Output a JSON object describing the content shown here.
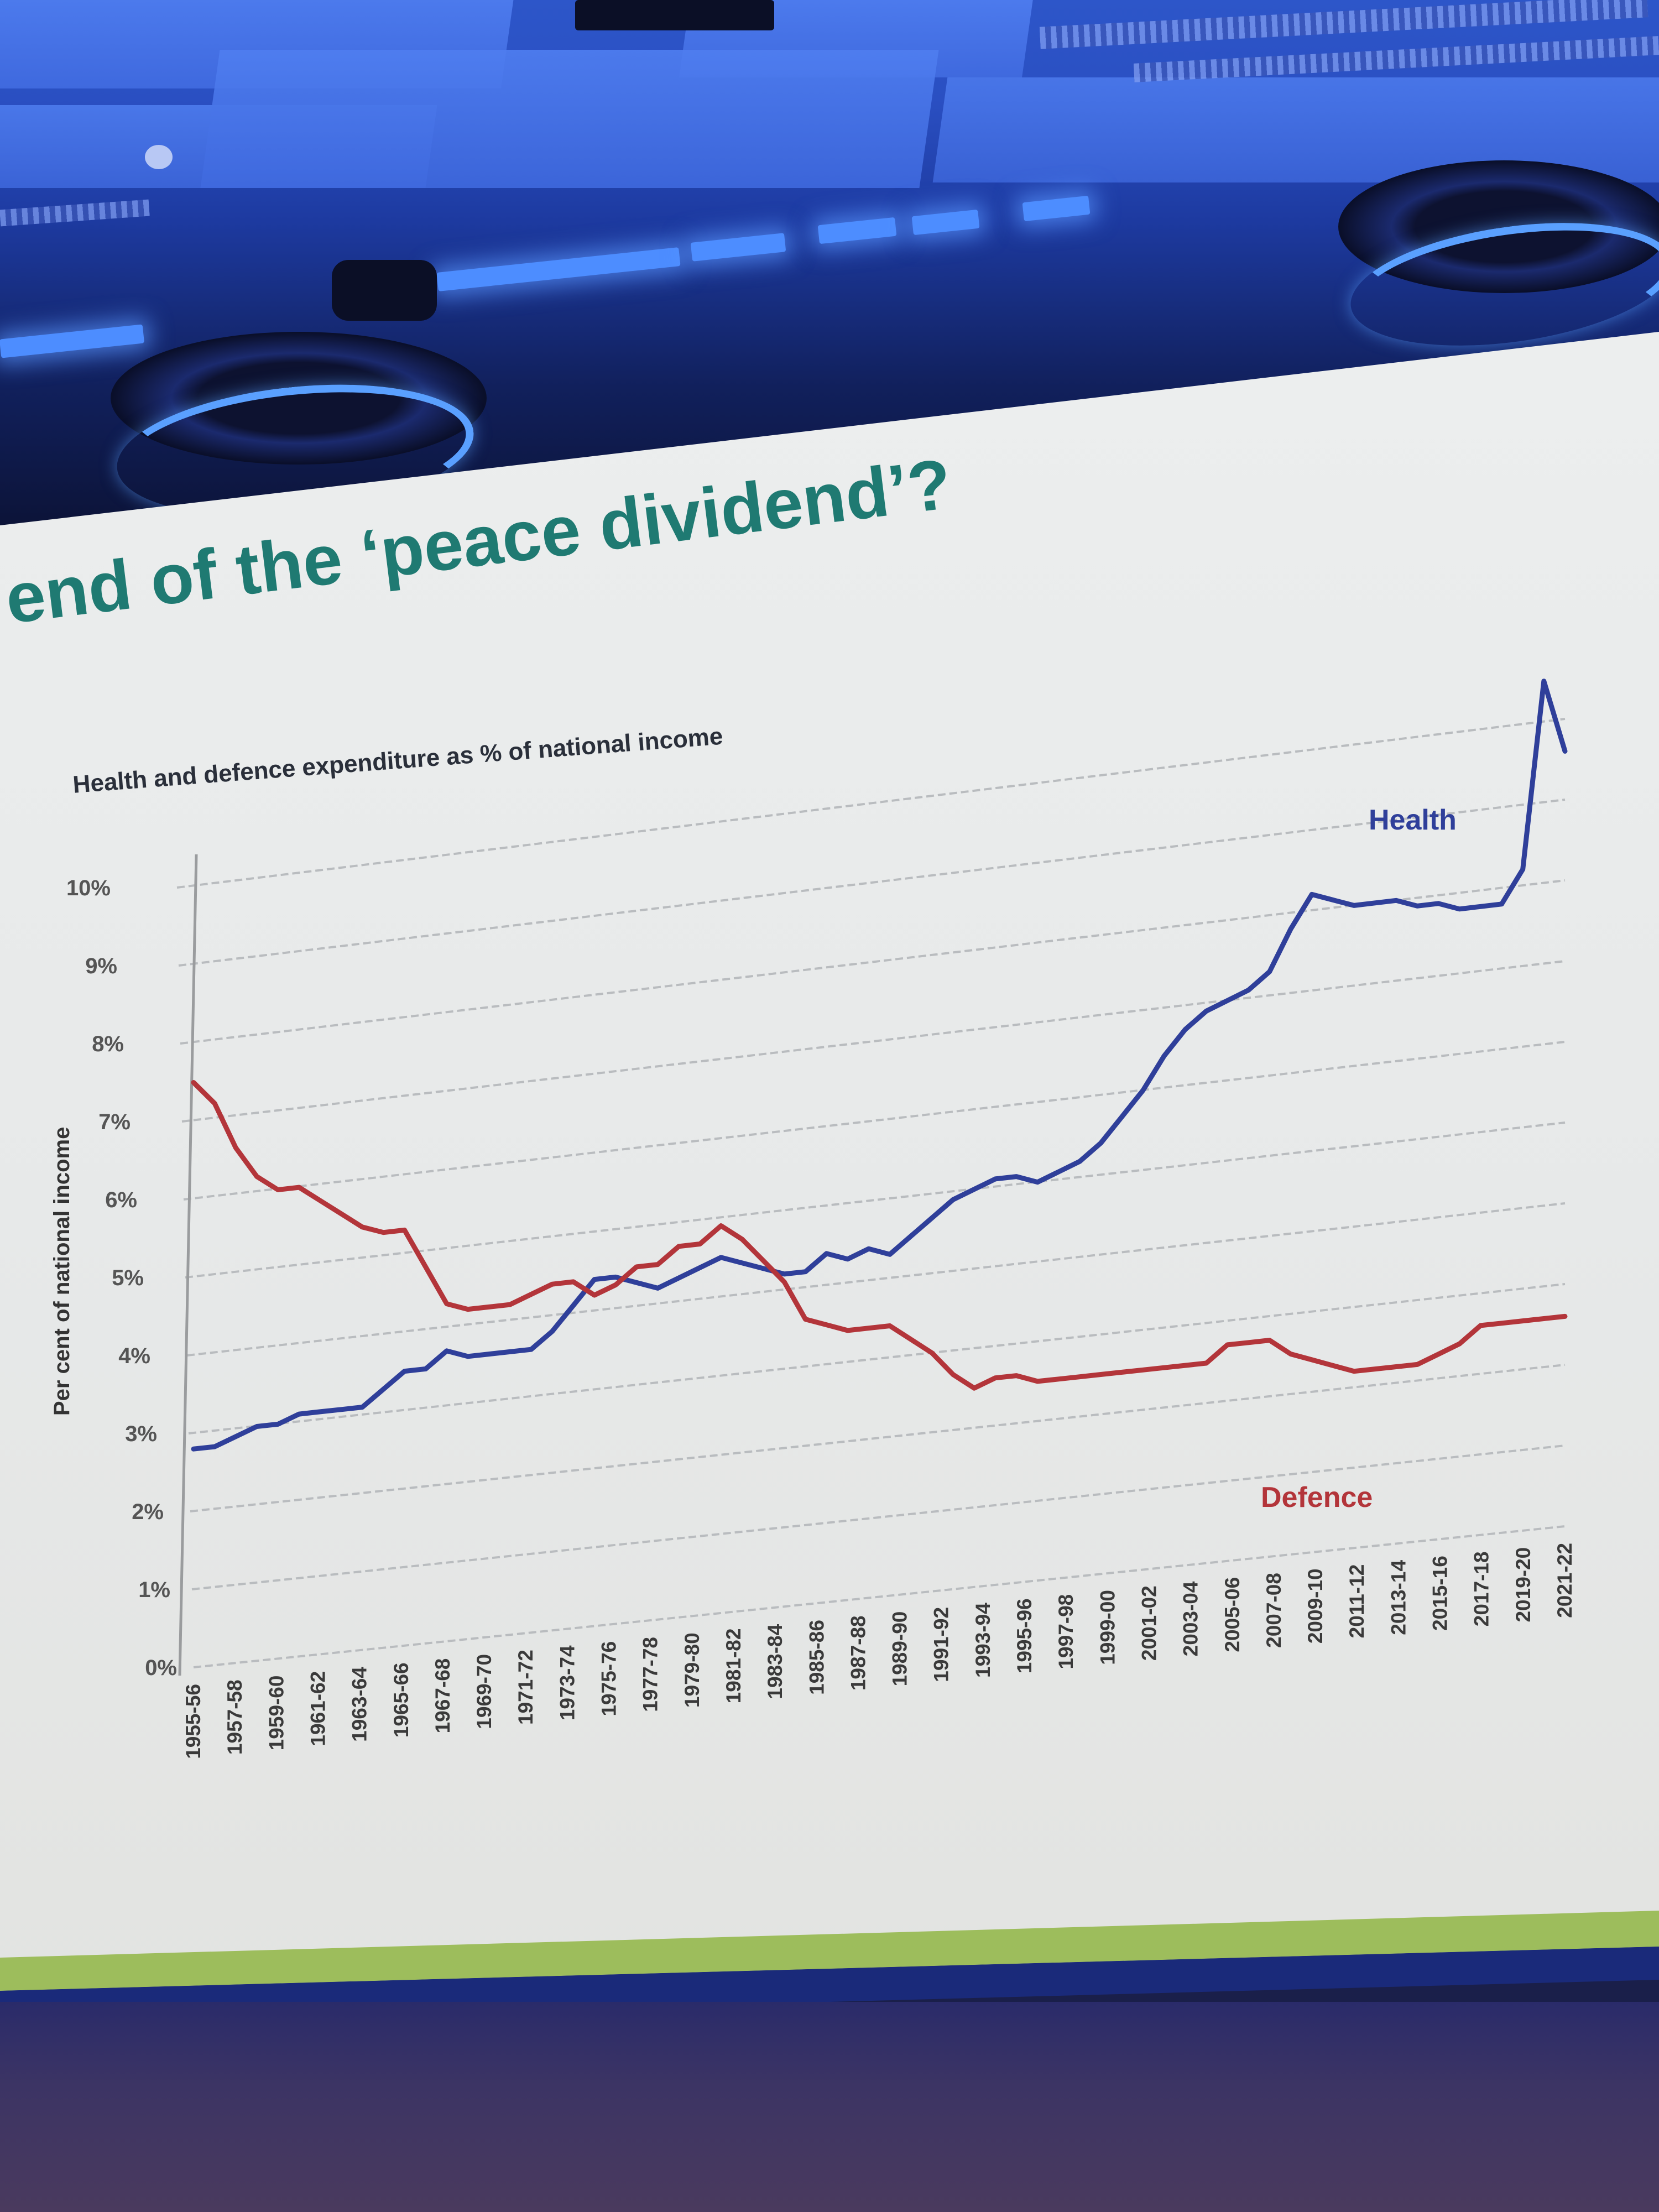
{
  "slide": {
    "title": "end of the ‘peace dividend’?"
  },
  "chart_data": {
    "type": "line",
    "title": "Health and defence expenditure as % of national income",
    "xlabel": "",
    "ylabel": "Per cent of national income",
    "ylim": [
      0,
      10
    ],
    "y_ticks": [
      "0%",
      "1%",
      "2%",
      "3%",
      "4%",
      "5%",
      "6%",
      "7%",
      "8%",
      "9%",
      "10%"
    ],
    "grid": true,
    "x_tick_labels": [
      "1955-56",
      "1957-58",
      "1959-60",
      "1961-62",
      "1963-64",
      "1965-66",
      "1967-68",
      "1969-70",
      "1971-72",
      "1973-74",
      "1975-76",
      "1977-78",
      "1979-80",
      "1981-82",
      "1983-84",
      "1985-86",
      "1987-88",
      "1989-90",
      "1991-92",
      "1993-94",
      "1995-96",
      "1997-98",
      "1999-00",
      "2001-02",
      "2003-04",
      "2005-06",
      "2007-08",
      "2009-10",
      "2011-12",
      "2013-14",
      "2015-16",
      "2017-18",
      "2019-20",
      "2021-22"
    ],
    "x_start_year": 1955,
    "series": [
      {
        "name": "Health",
        "color": "#2f3f9a",
        "values": [
          2.8,
          2.8,
          2.9,
          3.0,
          3.0,
          3.1,
          3.1,
          3.1,
          3.1,
          3.3,
          3.5,
          3.5,
          3.7,
          3.6,
          3.6,
          3.6,
          3.6,
          3.8,
          4.1,
          4.4,
          4.4,
          4.3,
          4.2,
          4.3,
          4.4,
          4.5,
          4.4,
          4.3,
          4.2,
          4.2,
          4.4,
          4.3,
          4.4,
          4.3,
          4.5,
          4.7,
          4.9,
          5.0,
          5.1,
          5.1,
          5.0,
          5.1,
          5.2,
          5.4,
          5.7,
          6.0,
          6.4,
          6.7,
          6.9,
          7.0,
          7.1,
          7.3,
          7.8,
          8.2,
          8.1,
          8.0,
          8.0,
          8.0,
          7.9,
          7.9,
          7.8,
          7.8,
          7.8,
          8.2,
          10.5,
          9.6
        ]
      },
      {
        "name": "Defence",
        "color": "#b3353a",
        "values": [
          7.5,
          7.2,
          6.6,
          6.2,
          6.0,
          6.0,
          5.8,
          5.6,
          5.4,
          5.3,
          5.3,
          4.8,
          4.3,
          4.2,
          4.2,
          4.2,
          4.3,
          4.4,
          4.4,
          4.2,
          4.3,
          4.5,
          4.5,
          4.7,
          4.7,
          4.9,
          4.7,
          4.4,
          4.1,
          3.6,
          3.5,
          3.4,
          3.4,
          3.4,
          3.2,
          3.0,
          2.7,
          2.5,
          2.6,
          2.6,
          2.5,
          2.5,
          2.5,
          2.5,
          2.5,
          2.5,
          2.5,
          2.5,
          2.5,
          2.7,
          2.7,
          2.7,
          2.5,
          2.4,
          2.3,
          2.2,
          2.2,
          2.2,
          2.2,
          2.3,
          2.4,
          2.6,
          2.6,
          2.6,
          2.6,
          2.6
        ]
      }
    ],
    "annotations": [
      {
        "text": "Health",
        "series": "Health"
      },
      {
        "text": "Defence",
        "series": "Defence"
      }
    ]
  }
}
